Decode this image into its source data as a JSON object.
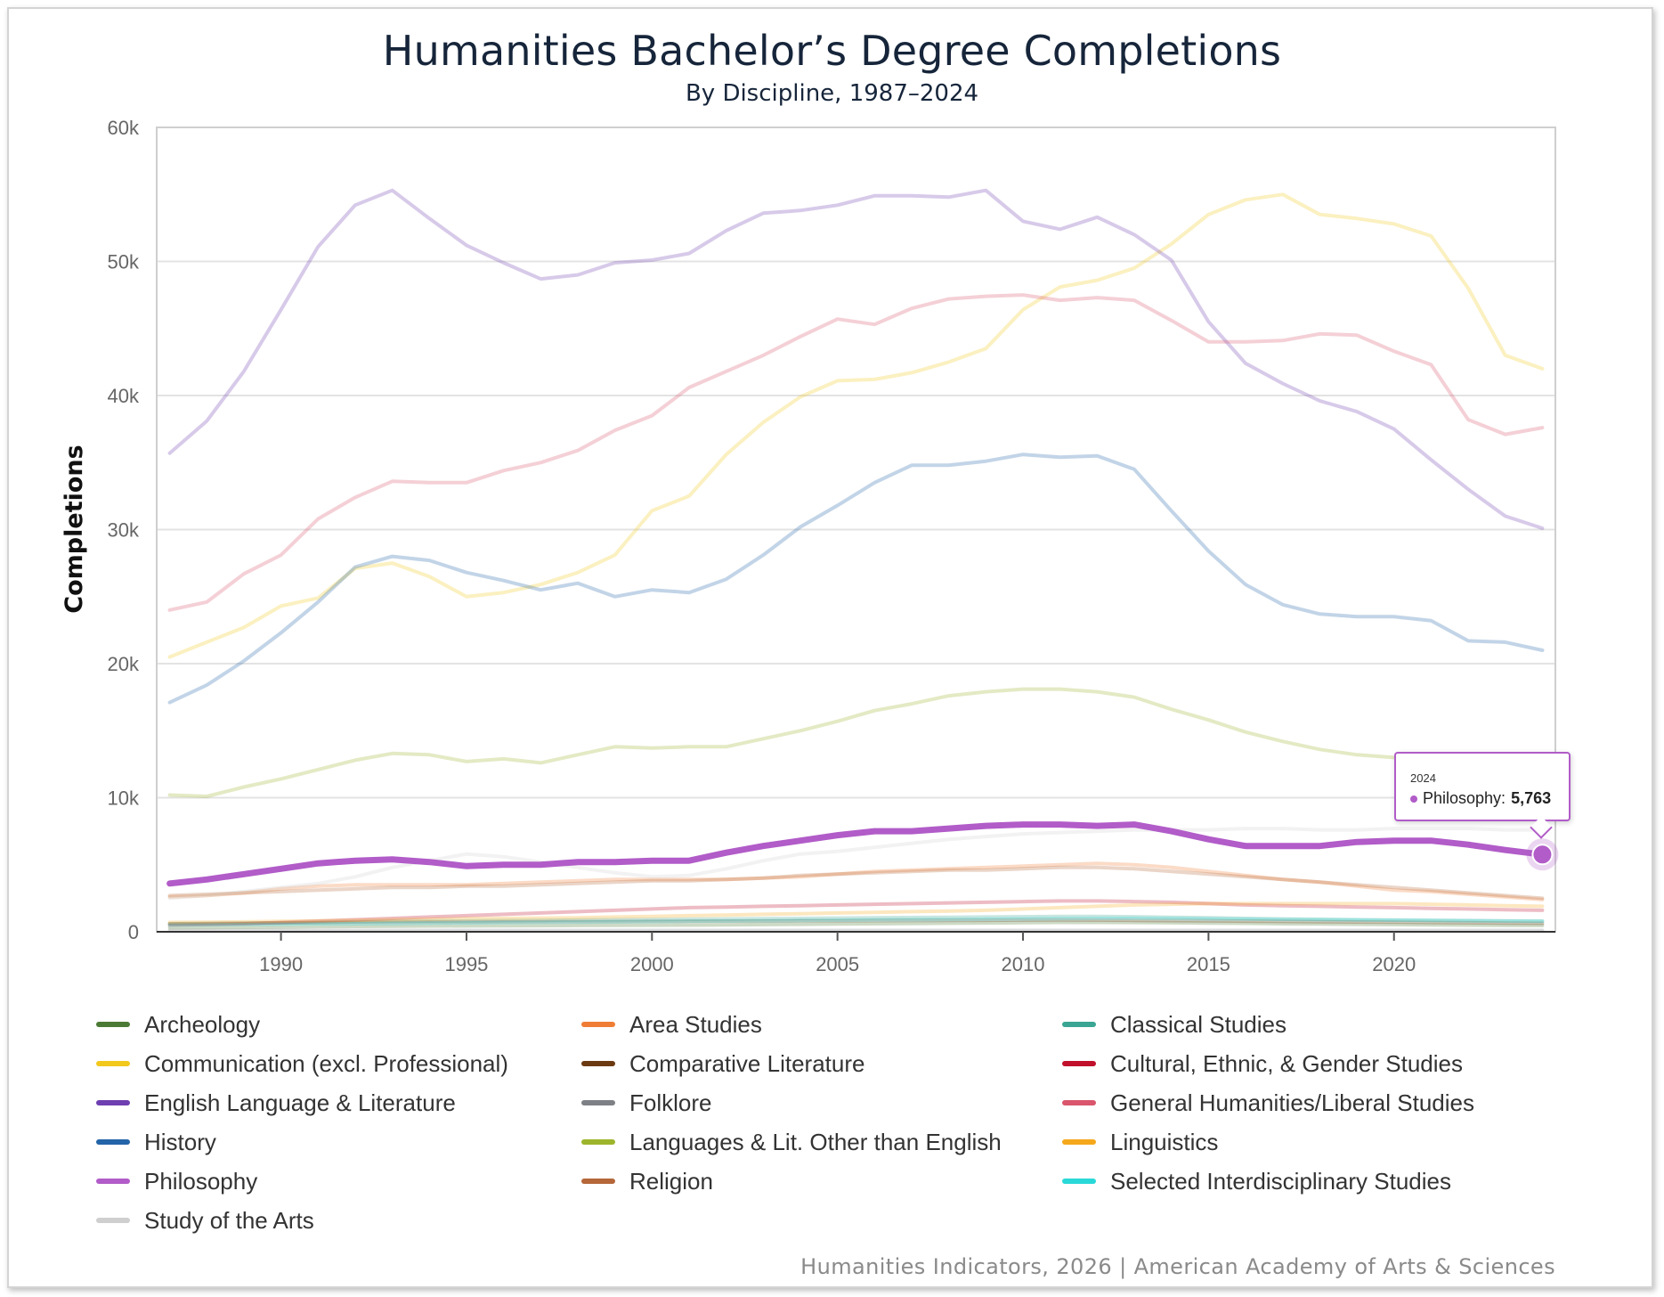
{
  "chart_data": {
    "type": "line",
    "title": "Humanities Bachelor’s Degree Completions",
    "subtitle": "By Discipline, 1987–2024",
    "ylabel": "Completions",
    "xlabel": "",
    "ylim": [
      0,
      60000
    ],
    "xlim": [
      1987,
      2024
    ],
    "y_ticks": [
      0,
      10000,
      20000,
      30000,
      40000,
      50000,
      60000
    ],
    "y_tick_labels": [
      "0",
      "10k",
      "20k",
      "30k",
      "40k",
      "50k",
      "60k"
    ],
    "x_ticks": [
      1990,
      1995,
      2000,
      2005,
      2010,
      2015,
      2020
    ],
    "x_tick_labels": [
      "1990",
      "1995",
      "2000",
      "2005",
      "2010",
      "2015",
      "2020"
    ],
    "grid": "horizontal",
    "legend_position": "bottom",
    "highlighted_series": "Philosophy",
    "x": [
      1987,
      1988,
      1989,
      1990,
      1991,
      1992,
      1993,
      1994,
      1995,
      1996,
      1997,
      1998,
      1999,
      2000,
      2001,
      2002,
      2003,
      2004,
      2005,
      2006,
      2007,
      2008,
      2009,
      2010,
      2011,
      2012,
      2013,
      2014,
      2015,
      2016,
      2017,
      2018,
      2019,
      2020,
      2021,
      2022,
      2023,
      2024
    ],
    "series": [
      {
        "name": "Archeology",
        "color": "#4b7a34",
        "values": [
          300,
          310,
          330,
          350,
          380,
          400,
          420,
          430,
          440,
          450,
          460,
          470,
          480,
          490,
          500,
          520,
          540,
          560,
          580,
          600,
          620,
          640,
          660,
          680,
          700,
          700,
          690,
          670,
          650,
          630,
          600,
          580,
          560,
          540,
          520,
          500,
          480,
          470
        ]
      },
      {
        "name": "Area Studies",
        "color": "#ef7d35",
        "values": [
          2600,
          2700,
          2900,
          3200,
          3400,
          3500,
          3500,
          3500,
          3500,
          3600,
          3700,
          3800,
          3900,
          3900,
          3900,
          3900,
          4000,
          4100,
          4300,
          4500,
          4600,
          4700,
          4800,
          4900,
          5000,
          5100,
          5000,
          4800,
          4500,
          4200,
          3900,
          3700,
          3400,
          3100,
          3000,
          2800,
          2600,
          2400
        ]
      },
      {
        "name": "Classical Studies",
        "color": "#3aa593",
        "values": [
          600,
          620,
          640,
          660,
          700,
          740,
          780,
          800,
          820,
          840,
          860,
          880,
          900,
          920,
          940,
          960,
          980,
          1000,
          1020,
          1040,
          1060,
          1080,
          1100,
          1120,
          1140,
          1150,
          1120,
          1080,
          1040,
          1000,
          960,
          930,
          900,
          880,
          860,
          840,
          820,
          800
        ]
      },
      {
        "name": "Communication (excl. Professional)",
        "color": "#f2c81d",
        "values": [
          20500,
          21600,
          22700,
          24300,
          24900,
          27100,
          27500,
          26500,
          25000,
          25300,
          25900,
          26800,
          28100,
          31400,
          32500,
          35600,
          38000,
          39900,
          41100,
          41200,
          41700,
          42500,
          43500,
          46400,
          48100,
          48600,
          49500,
          51300,
          53500,
          54600,
          55000,
          53500,
          53200,
          52800,
          51900,
          48000,
          43000,
          42000
        ]
      },
      {
        "name": "Comparative Literature",
        "color": "#6b3a10",
        "values": [
          600,
          610,
          630,
          650,
          670,
          690,
          700,
          710,
          720,
          730,
          740,
          750,
          760,
          770,
          780,
          790,
          800,
          810,
          820,
          830,
          840,
          850,
          860,
          870,
          880,
          870,
          850,
          830,
          810,
          790,
          770,
          750,
          730,
          710,
          690,
          670,
          650,
          630
        ]
      },
      {
        "name": "Cultural, Ethnic, & Gender Studies",
        "color": "#c0102c",
        "values": [
          500,
          550,
          600,
          700,
          800,
          900,
          1000,
          1100,
          1200,
          1300,
          1400,
          1500,
          1600,
          1700,
          1800,
          1850,
          1900,
          1950,
          2000,
          2050,
          2100,
          2150,
          2200,
          2250,
          2300,
          2300,
          2250,
          2200,
          2100,
          2000,
          1950,
          1900,
          1850,
          1800,
          1750,
          1700,
          1650,
          1600
        ]
      },
      {
        "name": "English Language & Literature",
        "color": "#6e3fb0",
        "values": [
          35700,
          38100,
          41800,
          46400,
          51100,
          54200,
          55300,
          53200,
          51200,
          49900,
          48700,
          49000,
          49900,
          50100,
          50600,
          52300,
          53600,
          53800,
          54200,
          54900,
          54900,
          54800,
          55300,
          53000,
          52400,
          53300,
          52000,
          50100,
          45500,
          42400,
          40900,
          39600,
          38800,
          37500,
          35200,
          33000,
          31000,
          30100
        ]
      },
      {
        "name": "Folklore",
        "color": "#7d8186",
        "values": [
          100,
          100,
          100,
          100,
          100,
          100,
          100,
          100,
          100,
          100,
          100,
          100,
          100,
          100,
          100,
          100,
          100,
          100,
          100,
          100,
          100,
          100,
          100,
          100,
          100,
          100,
          100,
          100,
          100,
          100,
          100,
          100,
          100,
          100,
          100,
          100,
          100,
          100
        ]
      },
      {
        "name": "General Humanities/Liberal Studies",
        "color": "#d9566c",
        "values": [
          24000,
          24600,
          26700,
          28100,
          30800,
          32400,
          33600,
          33500,
          33500,
          34400,
          35000,
          35900,
          37400,
          38500,
          40600,
          41800,
          43000,
          44400,
          45700,
          45300,
          46500,
          47200,
          47400,
          47500,
          47100,
          47300,
          47100,
          45600,
          44000,
          44000,
          44100,
          44600,
          44500,
          43300,
          42300,
          38200,
          37100,
          37600
        ]
      },
      {
        "name": "History",
        "color": "#2464a8",
        "values": [
          17100,
          18400,
          20200,
          22300,
          24600,
          27200,
          28000,
          27700,
          26800,
          26200,
          25500,
          26000,
          25000,
          25500,
          25300,
          26300,
          28100,
          30200,
          31800,
          33500,
          34800,
          34800,
          35100,
          35600,
          35400,
          35500,
          34500,
          31400,
          28400,
          25900,
          24400,
          23700,
          23500,
          23500,
          23200,
          21700,
          21600,
          21000
        ]
      },
      {
        "name": "Languages & Lit. Other than English",
        "color": "#9cb52c",
        "values": [
          10200,
          10100,
          10800,
          11400,
          12100,
          12800,
          13300,
          13200,
          12700,
          12900,
          12600,
          13200,
          13800,
          13700,
          13800,
          13800,
          14400,
          15000,
          15700,
          16500,
          17000,
          17600,
          17900,
          18100,
          18100,
          17900,
          17500,
          16600,
          15800,
          14900,
          14200,
          13600,
          13200,
          13000,
          12800,
          12600,
          12400,
          12200
        ]
      },
      {
        "name": "Linguistics",
        "color": "#f5a81c",
        "values": [
          700,
          720,
          740,
          780,
          820,
          860,
          900,
          940,
          980,
          1000,
          1020,
          1050,
          1100,
          1150,
          1200,
          1250,
          1300,
          1350,
          1400,
          1450,
          1500,
          1550,
          1600,
          1700,
          1800,
          1900,
          2000,
          2050,
          2100,
          2100,
          2100,
          2100,
          2100,
          2100,
          2050,
          2000,
          1950,
          1900
        ]
      },
      {
        "name": "Philosophy",
        "color": "#b15cc8",
        "values": [
          3600,
          3900,
          4300,
          4700,
          5100,
          5300,
          5400,
          5200,
          4900,
          5000,
          5000,
          5200,
          5200,
          5300,
          5300,
          5900,
          6400,
          6800,
          7200,
          7500,
          7500,
          7700,
          7900,
          8000,
          8000,
          7900,
          8000,
          7500,
          6900,
          6400,
          6400,
          6400,
          6700,
          6800,
          6800,
          6500,
          6100,
          5763
        ]
      },
      {
        "name": "Religion",
        "color": "#b5673a",
        "values": [
          2700,
          2800,
          2900,
          3000,
          3100,
          3200,
          3300,
          3300,
          3400,
          3400,
          3500,
          3600,
          3700,
          3800,
          3800,
          3900,
          4000,
          4200,
          4300,
          4400,
          4500,
          4600,
          4600,
          4700,
          4800,
          4800,
          4700,
          4500,
          4300,
          4100,
          3900,
          3700,
          3500,
          3300,
          3100,
          2900,
          2700,
          2500
        ]
      },
      {
        "name": "Selected Interdisciplinary Studies",
        "color": "#2ad8d8",
        "values": [
          500,
          520,
          540,
          560,
          580,
          600,
          620,
          640,
          660,
          680,
          700,
          720,
          740,
          760,
          780,
          800,
          820,
          840,
          860,
          880,
          900,
          920,
          940,
          960,
          980,
          1000,
          1000,
          980,
          960,
          940,
          920,
          900,
          880,
          860,
          840,
          820,
          800,
          780
        ]
      },
      {
        "name": "Study of the Arts",
        "color": "#cfcfcf",
        "values": [
          2500,
          2700,
          3000,
          3300,
          3600,
          4100,
          4800,
          5300,
          5800,
          5600,
          5200,
          4800,
          4400,
          4100,
          4200,
          4700,
          5300,
          5800,
          6000,
          6300,
          6600,
          6900,
          7100,
          7300,
          7400,
          7500,
          7600,
          7600,
          7600,
          7700,
          7700,
          7600,
          7600,
          7700,
          7700,
          7700,
          7600,
          7600
        ]
      }
    ],
    "tooltip": {
      "year": "2024",
      "label": "Philosophy:",
      "value": "5,763"
    }
  },
  "legend_items": [
    {
      "label": "Archeology",
      "color": "#4b7a34"
    },
    {
      "label": "Area Studies",
      "color": "#ef7d35"
    },
    {
      "label": "Classical Studies",
      "color": "#3aa593"
    },
    {
      "label": "Communication (excl. Professional)",
      "color": "#f2c81d"
    },
    {
      "label": "Comparative Literature",
      "color": "#6b3a10"
    },
    {
      "label": "Cultural, Ethnic, & Gender Studies",
      "color": "#c0102c"
    },
    {
      "label": "English Language & Literature",
      "color": "#6e3fb0"
    },
    {
      "label": "Folklore",
      "color": "#7d8186"
    },
    {
      "label": "General Humanities/Liberal Studies",
      "color": "#d9566c"
    },
    {
      "label": "History",
      "color": "#2464a8"
    },
    {
      "label": "Languages & Lit. Other than English",
      "color": "#9cb52c"
    },
    {
      "label": "Linguistics",
      "color": "#f5a81c"
    },
    {
      "label": "Philosophy",
      "color": "#b15cc8"
    },
    {
      "label": "Religion",
      "color": "#b5673a"
    },
    {
      "label": "Selected Interdisciplinary Studies",
      "color": "#2ad8d8"
    },
    {
      "label": "Study of the Arts",
      "color": "#cfcfcf"
    }
  ],
  "credit": "Humanities Indicators, 2026 | American Academy of Arts & Sciences"
}
